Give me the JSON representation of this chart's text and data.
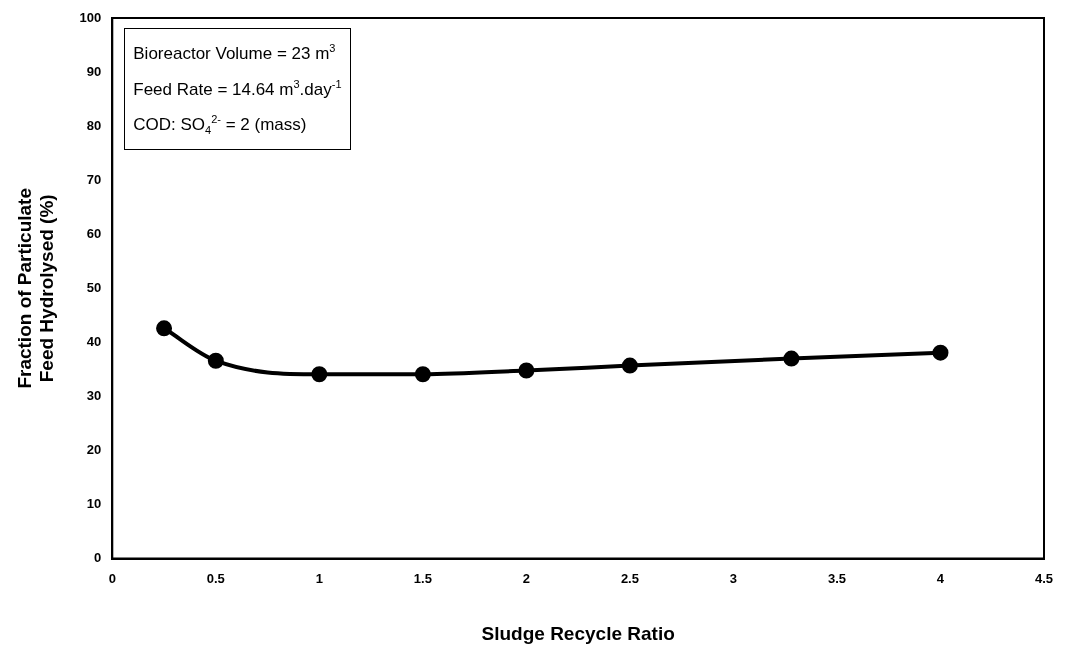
{
  "chart_data": {
    "type": "line",
    "xlabel": "Sludge Recycle Ratio",
    "ylabel": "Fraction of Particulate Feed Hydrolysed (%)",
    "x": [
      0.25,
      0.5,
      1,
      1.5,
      2,
      2.5,
      3.28,
      4
    ],
    "series": [
      {
        "color": "#000000",
        "values": [
          42.6,
          36.6,
          34.1,
          34.1,
          34.8,
          35.7,
          37.0,
          38.1
        ]
      }
    ],
    "xlim": [
      0,
      4.5
    ],
    "xticks": [
      0,
      0.5,
      1,
      1.5,
      2,
      2.5,
      3,
      3.5,
      4,
      4.5
    ],
    "ylim": [
      0,
      100
    ],
    "yticks": [
      0,
      10,
      20,
      30,
      40,
      50,
      60,
      70,
      80,
      90,
      100
    ],
    "grid": false,
    "legend": false,
    "marker": "circle",
    "line_style": "solid",
    "annotations": [
      "Bioreactor Volume = 23 m$^{3}$",
      "Feed Rate = 14.64 m$^{3}$.day$^{-1}$",
      "COD: SO$_{4}$$^{2-}$ = 2 (mass)"
    ]
  }
}
